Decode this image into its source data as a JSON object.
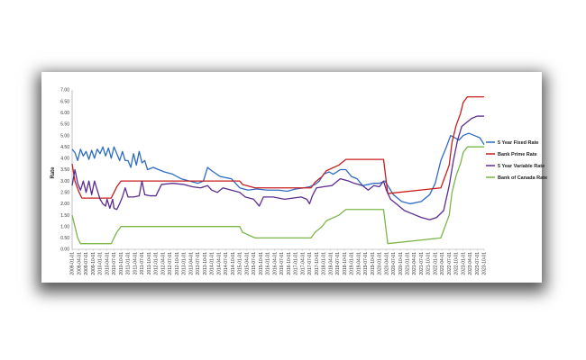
{
  "chart_data": {
    "type": "line",
    "title": "",
    "xlabel": "",
    "ylabel": "Rate",
    "ylim": [
      0,
      7
    ],
    "yticks": [
      "0.00",
      "0.50",
      "1.00",
      "1.50",
      "2.00",
      "2.50",
      "3.00",
      "3.50",
      "4.00",
      "4.50",
      "5.00",
      "5.50",
      "6.00",
      "6.50",
      "7.00"
    ],
    "xticks": [
      "2009-01-01",
      "2009-04-01",
      "2009-07-01",
      "2009-10-01",
      "2010-01-01",
      "2010-04-01",
      "2010-07-01",
      "2010-10-01",
      "2011-01-01",
      "2011-04-01",
      "2011-07-01",
      "2011-10-01",
      "2012-01-01",
      "2012-04-01",
      "2012-07-01",
      "2012-10-01",
      "2013-01-01",
      "2013-04-01",
      "2013-07-01",
      "2013-10-01",
      "2014-01-01",
      "2014-04-01",
      "2014-07-01",
      "2014-10-01",
      "2015-01-01",
      "2015-04-01",
      "2015-07-01",
      "2015-10-01",
      "2016-01-01",
      "2016-04-01",
      "2016-07-01",
      "2016-10-01",
      "2017-01-01",
      "2017-04-01",
      "2017-07-01",
      "2017-10-01",
      "2018-01-01",
      "2018-04-01",
      "2018-07-01",
      "2018-10-01",
      "2019-01-01",
      "2019-04-01",
      "2019-07-01",
      "2019-10-01",
      "2020-01-01",
      "2020-04-01",
      "2020-07-01",
      "2020-10-01",
      "2021-01-01",
      "2021-04-01",
      "2021-07-01",
      "2021-10-01",
      "2022-01-01",
      "2022-04-01",
      "2022-07-01",
      "2022-10-01",
      "2023-01-01",
      "2023-04-01",
      "2023-07-01",
      "2023-10-01"
    ],
    "grid": false,
    "legend_position": "right",
    "series": [
      {
        "name": "5 Year Fixed Rate",
        "color": "#2e6cc4",
        "points": [
          [
            2009.0,
            4.4
          ],
          [
            2009.1,
            4.25
          ],
          [
            2009.2,
            3.9
          ],
          [
            2009.3,
            4.4
          ],
          [
            2009.4,
            4.1
          ],
          [
            2009.5,
            4.3
          ],
          [
            2009.6,
            3.95
          ],
          [
            2009.7,
            4.35
          ],
          [
            2009.8,
            4.0
          ],
          [
            2009.9,
            4.4
          ],
          [
            2010.0,
            4.2
          ],
          [
            2010.1,
            4.5
          ],
          [
            2010.2,
            4.1
          ],
          [
            2010.3,
            4.45
          ],
          [
            2010.4,
            4.0
          ],
          [
            2010.5,
            4.5
          ],
          [
            2010.6,
            4.2
          ],
          [
            2010.7,
            3.9
          ],
          [
            2010.8,
            4.3
          ],
          [
            2010.9,
            3.9
          ],
          [
            2011.0,
            3.9
          ],
          [
            2011.1,
            3.6
          ],
          [
            2011.2,
            4.2
          ],
          [
            2011.3,
            3.7
          ],
          [
            2011.4,
            4.3
          ],
          [
            2011.5,
            3.8
          ],
          [
            2011.6,
            3.9
          ],
          [
            2011.7,
            3.5
          ],
          [
            2011.9,
            3.6
          ],
          [
            2012.1,
            3.5
          ],
          [
            2012.3,
            3.4
          ],
          [
            2012.6,
            3.3
          ],
          [
            2012.9,
            3.1
          ],
          [
            2013.2,
            3.0
          ],
          [
            2013.5,
            2.9
          ],
          [
            2013.7,
            3.0
          ],
          [
            2013.85,
            3.6
          ],
          [
            2014.0,
            3.45
          ],
          [
            2014.3,
            3.2
          ],
          [
            2014.7,
            3.1
          ],
          [
            2015.0,
            2.7
          ],
          [
            2015.3,
            2.6
          ],
          [
            2015.6,
            2.65
          ],
          [
            2016.0,
            2.6
          ],
          [
            2016.4,
            2.6
          ],
          [
            2016.7,
            2.55
          ],
          [
            2017.0,
            2.65
          ],
          [
            2017.3,
            2.7
          ],
          [
            2017.5,
            2.75
          ],
          [
            2017.7,
            2.85
          ],
          [
            2017.85,
            3.0
          ],
          [
            2018.0,
            3.3
          ],
          [
            2018.2,
            3.4
          ],
          [
            2018.35,
            3.3
          ],
          [
            2018.6,
            3.5
          ],
          [
            2018.8,
            3.5
          ],
          [
            2019.0,
            3.2
          ],
          [
            2019.2,
            3.1
          ],
          [
            2019.4,
            2.8
          ],
          [
            2019.6,
            2.85
          ],
          [
            2019.8,
            2.9
          ],
          [
            2020.0,
            2.9
          ],
          [
            2020.2,
            3.0
          ],
          [
            2020.35,
            2.7
          ],
          [
            2020.5,
            2.4
          ],
          [
            2020.8,
            2.1
          ],
          [
            2021.1,
            2.0
          ],
          [
            2021.5,
            2.1
          ],
          [
            2021.8,
            2.4
          ],
          [
            2022.0,
            2.9
          ],
          [
            2022.2,
            3.9
          ],
          [
            2022.4,
            4.5
          ],
          [
            2022.55,
            5.0
          ],
          [
            2022.7,
            4.9
          ],
          [
            2022.85,
            4.8
          ],
          [
            2023.0,
            5.0
          ],
          [
            2023.2,
            5.1
          ],
          [
            2023.4,
            5.0
          ],
          [
            2023.6,
            4.9
          ],
          [
            2023.75,
            4.6
          ]
        ]
      },
      {
        "name": "Bank Prime Rate",
        "color": "#c81e1e",
        "points": [
          [
            2009.0,
            3.75
          ],
          [
            2009.1,
            3.0
          ],
          [
            2009.25,
            2.5
          ],
          [
            2009.35,
            2.25
          ],
          [
            2010.4,
            2.25
          ],
          [
            2010.5,
            2.5
          ],
          [
            2010.6,
            2.75
          ],
          [
            2010.75,
            3.0
          ],
          [
            2015.0,
            3.0
          ],
          [
            2015.1,
            2.85
          ],
          [
            2015.55,
            2.7
          ],
          [
            2017.55,
            2.7
          ],
          [
            2017.7,
            2.95
          ],
          [
            2017.95,
            3.2
          ],
          [
            2018.1,
            3.45
          ],
          [
            2018.55,
            3.7
          ],
          [
            2018.8,
            3.95
          ],
          [
            2020.15,
            3.95
          ],
          [
            2020.2,
            3.45
          ],
          [
            2020.25,
            2.95
          ],
          [
            2020.3,
            2.45
          ],
          [
            2022.2,
            2.7
          ],
          [
            2022.35,
            3.2
          ],
          [
            2022.5,
            3.7
          ],
          [
            2022.6,
            4.7
          ],
          [
            2022.75,
            5.45
          ],
          [
            2022.9,
            5.95
          ],
          [
            2023.0,
            6.45
          ],
          [
            2023.15,
            6.7
          ],
          [
            2023.75,
            6.7
          ]
        ]
      },
      {
        "name": "5 Year Variable Rate",
        "color": "#5b2d91",
        "points": [
          [
            2009.0,
            2.8
          ],
          [
            2009.1,
            3.5
          ],
          [
            2009.2,
            2.9
          ],
          [
            2009.3,
            2.6
          ],
          [
            2009.4,
            3.0
          ],
          [
            2009.5,
            2.5
          ],
          [
            2009.6,
            3.0
          ],
          [
            2009.7,
            2.4
          ],
          [
            2009.8,
            3.0
          ],
          [
            2009.9,
            2.6
          ],
          [
            2010.0,
            2.2
          ],
          [
            2010.1,
            2.0
          ],
          [
            2010.2,
            1.9
          ],
          [
            2010.25,
            2.2
          ],
          [
            2010.35,
            1.8
          ],
          [
            2010.45,
            2.2
          ],
          [
            2010.5,
            1.8
          ],
          [
            2010.6,
            1.75
          ],
          [
            2010.7,
            2.0
          ],
          [
            2010.8,
            2.3
          ],
          [
            2010.9,
            2.7
          ],
          [
            2011.0,
            2.3
          ],
          [
            2011.2,
            2.3
          ],
          [
            2011.4,
            2.35
          ],
          [
            2011.5,
            3.0
          ],
          [
            2011.6,
            2.4
          ],
          [
            2011.8,
            2.35
          ],
          [
            2012.0,
            2.35
          ],
          [
            2012.2,
            2.85
          ],
          [
            2012.6,
            2.9
          ],
          [
            2013.0,
            2.85
          ],
          [
            2013.3,
            2.75
          ],
          [
            2013.6,
            2.7
          ],
          [
            2013.85,
            2.8
          ],
          [
            2014.0,
            2.6
          ],
          [
            2014.2,
            2.5
          ],
          [
            2014.4,
            2.7
          ],
          [
            2014.7,
            2.6
          ],
          [
            2015.0,
            2.5
          ],
          [
            2015.2,
            2.3
          ],
          [
            2015.5,
            2.2
          ],
          [
            2015.7,
            1.9
          ],
          [
            2015.85,
            2.3
          ],
          [
            2016.2,
            2.3
          ],
          [
            2016.6,
            2.2
          ],
          [
            2016.9,
            2.25
          ],
          [
            2017.2,
            2.3
          ],
          [
            2017.4,
            2.2
          ],
          [
            2017.5,
            2.0
          ],
          [
            2017.6,
            2.35
          ],
          [
            2017.75,
            2.7
          ],
          [
            2018.0,
            2.75
          ],
          [
            2018.3,
            2.8
          ],
          [
            2018.6,
            3.1
          ],
          [
            2018.9,
            3.0
          ],
          [
            2019.1,
            2.9
          ],
          [
            2019.4,
            2.8
          ],
          [
            2019.6,
            2.6
          ],
          [
            2019.8,
            2.8
          ],
          [
            2020.0,
            2.75
          ],
          [
            2020.15,
            3.0
          ],
          [
            2020.25,
            2.6
          ],
          [
            2020.4,
            2.2
          ],
          [
            2020.6,
            2.0
          ],
          [
            2020.9,
            1.7
          ],
          [
            2021.2,
            1.55
          ],
          [
            2021.5,
            1.4
          ],
          [
            2021.8,
            1.3
          ],
          [
            2022.05,
            1.4
          ],
          [
            2022.3,
            1.7
          ],
          [
            2022.5,
            2.8
          ],
          [
            2022.65,
            3.9
          ],
          [
            2022.8,
            4.8
          ],
          [
            2022.95,
            5.4
          ],
          [
            2023.1,
            5.55
          ],
          [
            2023.3,
            5.75
          ],
          [
            2023.5,
            5.85
          ],
          [
            2023.75,
            5.85
          ]
        ]
      },
      {
        "name": "Bank of Canada Rate",
        "color": "#7ab648",
        "points": [
          [
            2009.0,
            1.5
          ],
          [
            2009.1,
            1.0
          ],
          [
            2009.2,
            0.5
          ],
          [
            2009.3,
            0.25
          ],
          [
            2010.4,
            0.25
          ],
          [
            2010.5,
            0.5
          ],
          [
            2010.6,
            0.75
          ],
          [
            2010.75,
            1.0
          ],
          [
            2015.0,
            1.0
          ],
          [
            2015.1,
            0.75
          ],
          [
            2015.55,
            0.5
          ],
          [
            2017.55,
            0.5
          ],
          [
            2017.7,
            0.75
          ],
          [
            2017.95,
            1.0
          ],
          [
            2018.1,
            1.25
          ],
          [
            2018.55,
            1.5
          ],
          [
            2018.8,
            1.75
          ],
          [
            2020.15,
            1.75
          ],
          [
            2020.2,
            1.25
          ],
          [
            2020.25,
            0.75
          ],
          [
            2020.3,
            0.25
          ],
          [
            2022.2,
            0.5
          ],
          [
            2022.35,
            1.0
          ],
          [
            2022.5,
            1.5
          ],
          [
            2022.6,
            2.5
          ],
          [
            2022.75,
            3.25
          ],
          [
            2022.9,
            3.75
          ],
          [
            2023.0,
            4.25
          ],
          [
            2023.15,
            4.5
          ],
          [
            2023.75,
            4.5
          ]
        ]
      }
    ]
  }
}
